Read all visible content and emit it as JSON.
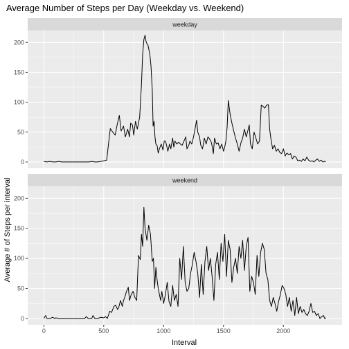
{
  "chart_data": {
    "type": "line",
    "title": "Average Number of Steps per Day (Weekday vs. Weekend)",
    "xlabel": "Interval",
    "ylabel": "Average # of Steps per interval",
    "xlim": [
      -135,
      2490
    ],
    "ylim": [
      -10.5,
      220
    ],
    "x_ticks": [
      0,
      500,
      1000,
      1500,
      2000
    ],
    "y_ticks": [
      0,
      50,
      100,
      150,
      200
    ],
    "grid": true,
    "line_color": "#000000",
    "panel_bg": "#ebebeb",
    "strip_bg": "#d9d9d9",
    "panels": [
      {
        "strip_label": "weekday",
        "points": [
          [
            0,
            1
          ],
          [
            25,
            0
          ],
          [
            50,
            1
          ],
          [
            75,
            0
          ],
          [
            100,
            0
          ],
          [
            125,
            1
          ],
          [
            150,
            0
          ],
          [
            175,
            0
          ],
          [
            200,
            0
          ],
          [
            225,
            0
          ],
          [
            250,
            0
          ],
          [
            275,
            0
          ],
          [
            300,
            0
          ],
          [
            325,
            0
          ],
          [
            350,
            0
          ],
          [
            375,
            0
          ],
          [
            400,
            1
          ],
          [
            425,
            0
          ],
          [
            450,
            0
          ],
          [
            475,
            1
          ],
          [
            500,
            2
          ],
          [
            525,
            3
          ],
          [
            535,
            22
          ],
          [
            555,
            56
          ],
          [
            575,
            50
          ],
          [
            595,
            45
          ],
          [
            610,
            60
          ],
          [
            630,
            78
          ],
          [
            645,
            52
          ],
          [
            665,
            60
          ],
          [
            680,
            42
          ],
          [
            700,
            55
          ],
          [
            715,
            42
          ],
          [
            725,
            65
          ],
          [
            740,
            62
          ],
          [
            750,
            45
          ],
          [
            765,
            68
          ],
          [
            780,
            55
          ],
          [
            800,
            75
          ],
          [
            815,
            130
          ],
          [
            825,
            180
          ],
          [
            835,
            205
          ],
          [
            845,
            212
          ],
          [
            855,
            200
          ],
          [
            870,
            195
          ],
          [
            885,
            180
          ],
          [
            895,
            160
          ],
          [
            905,
            120
          ],
          [
            912,
            60
          ],
          [
            920,
            68
          ],
          [
            928,
            42
          ],
          [
            935,
            30
          ],
          [
            945,
            28
          ],
          [
            955,
            15
          ],
          [
            965,
            22
          ],
          [
            980,
            30
          ],
          [
            995,
            20
          ],
          [
            1005,
            35
          ],
          [
            1015,
            35
          ],
          [
            1025,
            28
          ],
          [
            1035,
            18
          ],
          [
            1050,
            30
          ],
          [
            1060,
            22
          ],
          [
            1075,
            40
          ],
          [
            1085,
            25
          ],
          [
            1095,
            35
          ],
          [
            1110,
            30
          ],
          [
            1125,
            33
          ],
          [
            1140,
            30
          ],
          [
            1155,
            28
          ],
          [
            1170,
            35
          ],
          [
            1185,
            42
          ],
          [
            1195,
            22
          ],
          [
            1210,
            28
          ],
          [
            1220,
            35
          ],
          [
            1235,
            30
          ],
          [
            1250,
            42
          ],
          [
            1265,
            58
          ],
          [
            1275,
            70
          ],
          [
            1285,
            50
          ],
          [
            1300,
            42
          ],
          [
            1310,
            28
          ],
          [
            1325,
            22
          ],
          [
            1340,
            40
          ],
          [
            1355,
            30
          ],
          [
            1370,
            42
          ],
          [
            1385,
            38
          ],
          [
            1400,
            32
          ],
          [
            1415,
            14
          ],
          [
            1425,
            40
          ],
          [
            1440,
            30
          ],
          [
            1455,
            32
          ],
          [
            1470,
            22
          ],
          [
            1485,
            30
          ],
          [
            1500,
            18
          ],
          [
            1510,
            25
          ],
          [
            1520,
            35
          ],
          [
            1530,
            58
          ],
          [
            1540,
            103
          ],
          [
            1555,
            80
          ],
          [
            1570,
            65
          ],
          [
            1585,
            52
          ],
          [
            1600,
            40
          ],
          [
            1615,
            30
          ],
          [
            1630,
            18
          ],
          [
            1645,
            32
          ],
          [
            1660,
            40
          ],
          [
            1675,
            55
          ],
          [
            1690,
            42
          ],
          [
            1700,
            50
          ],
          [
            1715,
            62
          ],
          [
            1725,
            30
          ],
          [
            1740,
            22
          ],
          [
            1755,
            50
          ],
          [
            1770,
            40
          ],
          [
            1785,
            30
          ],
          [
            1800,
            35
          ],
          [
            1815,
            95
          ],
          [
            1830,
            93
          ],
          [
            1845,
            90
          ],
          [
            1860,
            95
          ],
          [
            1875,
            96
          ],
          [
            1885,
            55
          ],
          [
            1895,
            40
          ],
          [
            1910,
            22
          ],
          [
            1925,
            28
          ],
          [
            1940,
            18
          ],
          [
            1955,
            22
          ],
          [
            1970,
            16
          ],
          [
            1985,
            14
          ],
          [
            2000,
            22
          ],
          [
            2015,
            10
          ],
          [
            2030,
            15
          ],
          [
            2045,
            12
          ],
          [
            2060,
            14
          ],
          [
            2075,
            5
          ],
          [
            2090,
            10
          ],
          [
            2105,
            8
          ],
          [
            2120,
            2
          ],
          [
            2135,
            3
          ],
          [
            2150,
            1
          ],
          [
            2165,
            5
          ],
          [
            2180,
            2
          ],
          [
            2195,
            8
          ],
          [
            2210,
            3
          ],
          [
            2225,
            1
          ],
          [
            2240,
            2
          ],
          [
            2255,
            0
          ],
          [
            2270,
            3
          ],
          [
            2285,
            5
          ],
          [
            2300,
            1
          ],
          [
            2315,
            3
          ],
          [
            2330,
            0
          ],
          [
            2345,
            1
          ],
          [
            2355,
            1
          ]
        ]
      },
      {
        "strip_label": "weekend",
        "points": [
          [
            0,
            0
          ],
          [
            15,
            5
          ],
          [
            25,
            0
          ],
          [
            50,
            0
          ],
          [
            75,
            2
          ],
          [
            90,
            0
          ],
          [
            100,
            1
          ],
          [
            125,
            0
          ],
          [
            150,
            0
          ],
          [
            175,
            0
          ],
          [
            200,
            0
          ],
          [
            225,
            0
          ],
          [
            250,
            0
          ],
          [
            275,
            0
          ],
          [
            300,
            0
          ],
          [
            325,
            0
          ],
          [
            340,
            0
          ],
          [
            355,
            3
          ],
          [
            370,
            0
          ],
          [
            400,
            0
          ],
          [
            410,
            5
          ],
          [
            425,
            0
          ],
          [
            450,
            0
          ],
          [
            475,
            2
          ],
          [
            500,
            1
          ],
          [
            515,
            3
          ],
          [
            530,
            0
          ],
          [
            550,
            12
          ],
          [
            565,
            10
          ],
          [
            585,
            20
          ],
          [
            600,
            22
          ],
          [
            615,
            15
          ],
          [
            625,
            18
          ],
          [
            640,
            30
          ],
          [
            655,
            20
          ],
          [
            665,
            30
          ],
          [
            675,
            35
          ],
          [
            690,
            45
          ],
          [
            705,
            52
          ],
          [
            715,
            30
          ],
          [
            730,
            40
          ],
          [
            745,
            45
          ],
          [
            760,
            35
          ],
          [
            775,
            30
          ],
          [
            790,
            105
          ],
          [
            805,
            98
          ],
          [
            815,
            140
          ],
          [
            825,
            120
          ],
          [
            835,
            185
          ],
          [
            845,
            150
          ],
          [
            860,
            130
          ],
          [
            875,
            155
          ],
          [
            890,
            140
          ],
          [
            905,
            95
          ],
          [
            915,
            100
          ],
          [
            925,
            50
          ],
          [
            935,
            85
          ],
          [
            945,
            65
          ],
          [
            955,
            50
          ],
          [
            965,
            40
          ],
          [
            975,
            30
          ],
          [
            985,
            45
          ],
          [
            1000,
            25
          ],
          [
            1015,
            40
          ],
          [
            1030,
            60
          ],
          [
            1045,
            28
          ],
          [
            1060,
            20
          ],
          [
            1075,
            55
          ],
          [
            1090,
            30
          ],
          [
            1105,
            40
          ],
          [
            1120,
            20
          ],
          [
            1135,
            100
          ],
          [
            1150,
            65
          ],
          [
            1165,
            120
          ],
          [
            1180,
            60
          ],
          [
            1195,
            45
          ],
          [
            1210,
            50
          ],
          [
            1225,
            75
          ],
          [
            1240,
            90
          ],
          [
            1255,
            110
          ],
          [
            1270,
            95
          ],
          [
            1285,
            75
          ],
          [
            1300,
            35
          ],
          [
            1315,
            90
          ],
          [
            1330,
            40
          ],
          [
            1345,
            95
          ],
          [
            1360,
            120
          ],
          [
            1375,
            80
          ],
          [
            1390,
            100
          ],
          [
            1405,
            70
          ],
          [
            1420,
            30
          ],
          [
            1435,
            90
          ],
          [
            1450,
            110
          ],
          [
            1465,
            65
          ],
          [
            1480,
            125
          ],
          [
            1495,
            95
          ],
          [
            1510,
            140
          ],
          [
            1525,
            70
          ],
          [
            1540,
            130
          ],
          [
            1555,
            115
          ],
          [
            1570,
            60
          ],
          [
            1585,
            85
          ],
          [
            1600,
            100
          ],
          [
            1615,
            75
          ],
          [
            1630,
            120
          ],
          [
            1645,
            100
          ],
          [
            1660,
            130
          ],
          [
            1675,
            80
          ],
          [
            1690,
            120
          ],
          [
            1705,
            135
          ],
          [
            1720,
            45
          ],
          [
            1735,
            70
          ],
          [
            1750,
            60
          ],
          [
            1765,
            40
          ],
          [
            1780,
            105
          ],
          [
            1795,
            70
          ],
          [
            1810,
            110
          ],
          [
            1825,
            125
          ],
          [
            1840,
            115
          ],
          [
            1855,
            75
          ],
          [
            1870,
            65
          ],
          [
            1885,
            30
          ],
          [
            1900,
            20
          ],
          [
            1915,
            35
          ],
          [
            1930,
            25
          ],
          [
            1945,
            12
          ],
          [
            1960,
            28
          ],
          [
            1975,
            40
          ],
          [
            1990,
            55
          ],
          [
            2005,
            50
          ],
          [
            2020,
            40
          ],
          [
            2035,
            20
          ],
          [
            2050,
            35
          ],
          [
            2065,
            12
          ],
          [
            2080,
            30
          ],
          [
            2095,
            5
          ],
          [
            2110,
            35
          ],
          [
            2125,
            8
          ],
          [
            2140,
            20
          ],
          [
            2155,
            10
          ],
          [
            2170,
            15
          ],
          [
            2185,
            8
          ],
          [
            2200,
            5
          ],
          [
            2215,
            12
          ],
          [
            2230,
            25
          ],
          [
            2245,
            10
          ],
          [
            2260,
            12
          ],
          [
            2275,
            5
          ],
          [
            2290,
            8
          ],
          [
            2305,
            0
          ],
          [
            2320,
            3
          ],
          [
            2335,
            5
          ],
          [
            2345,
            0
          ],
          [
            2355,
            1
          ]
        ]
      }
    ]
  }
}
